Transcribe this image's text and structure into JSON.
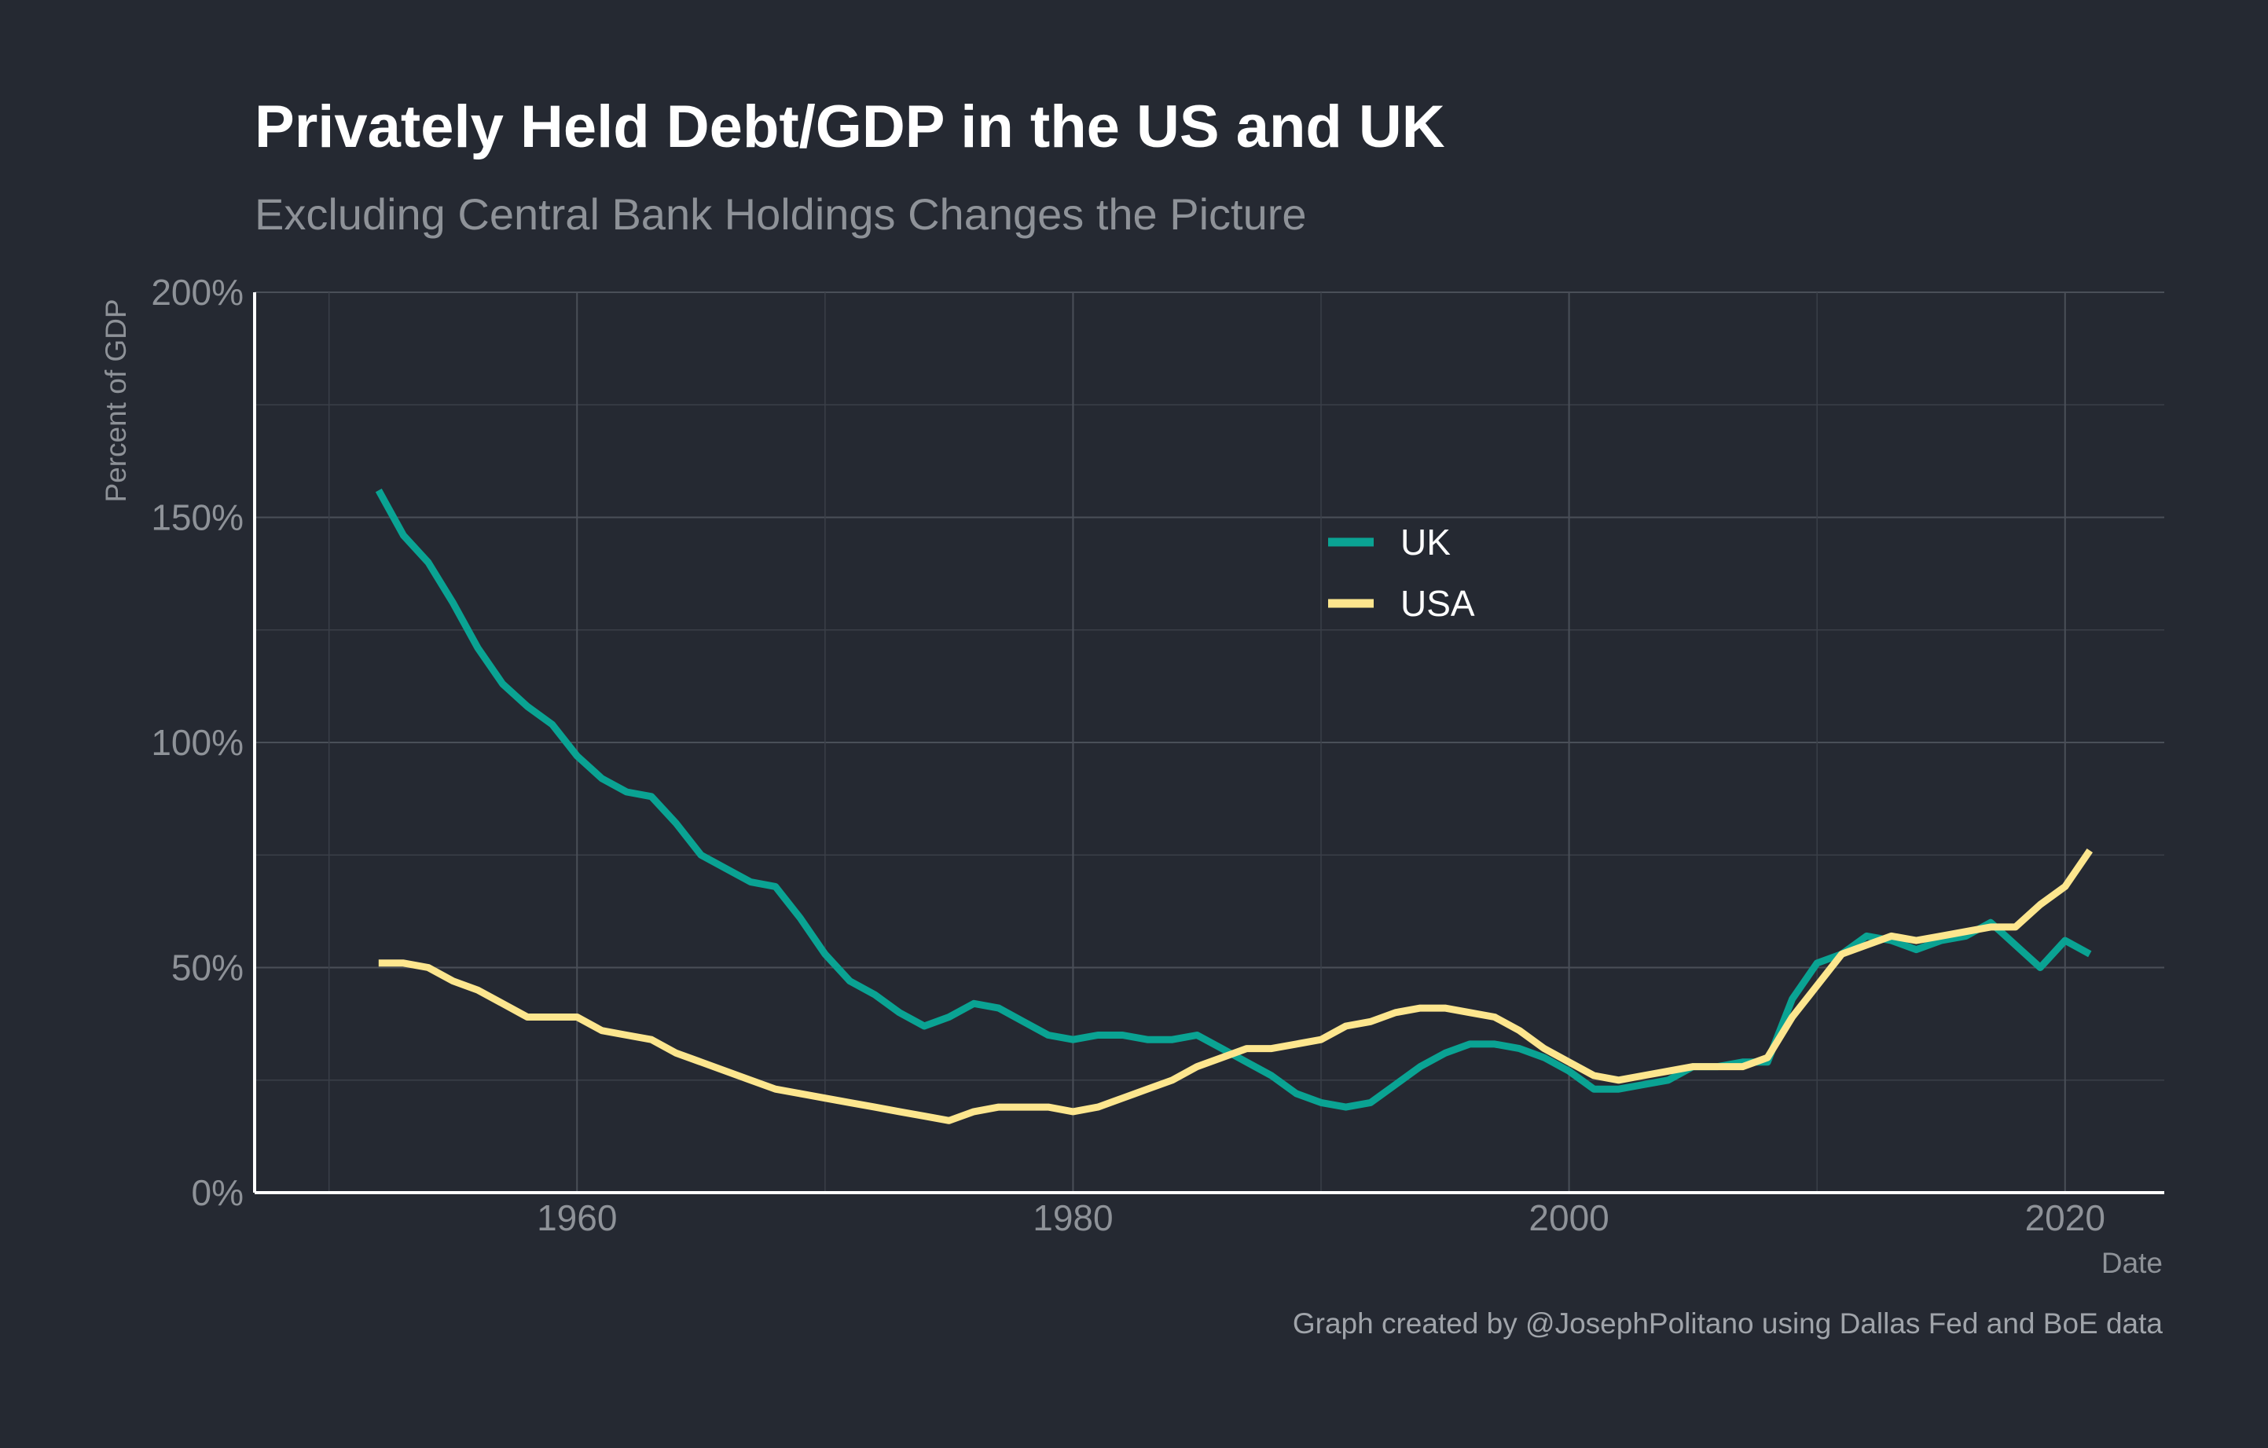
{
  "chart_data": {
    "type": "line",
    "title": "Privately Held Debt/GDP in the US and UK",
    "subtitle": "Excluding Central Bank Holdings Changes the Picture",
    "xlabel": "Date",
    "ylabel": "Percent of GDP",
    "caption": "Graph created by @JosephPolitano using Dallas Fed and BoE data",
    "xlim": [
      1947,
      2024
    ],
    "ylim": [
      0,
      200
    ],
    "x_ticks": [
      1960,
      1980,
      2000,
      2020
    ],
    "y_ticks": [
      0,
      50,
      100,
      150,
      200
    ],
    "y_tick_labels": [
      "0%",
      "50%",
      "100%",
      "150%",
      "200%"
    ],
    "grid": true,
    "legend_position": "center",
    "x": [
      1952,
      1953,
      1954,
      1955,
      1956,
      1957,
      1958,
      1959,
      1960,
      1961,
      1962,
      1963,
      1964,
      1965,
      1966,
      1967,
      1968,
      1969,
      1970,
      1971,
      1972,
      1973,
      1974,
      1975,
      1976,
      1977,
      1978,
      1979,
      1980,
      1981,
      1982,
      1983,
      1984,
      1985,
      1986,
      1987,
      1988,
      1989,
      1990,
      1991,
      1992,
      1993,
      1994,
      1995,
      1996,
      1997,
      1998,
      1999,
      2000,
      2001,
      2002,
      2003,
      2004,
      2005,
      2006,
      2007,
      2008,
      2009,
      2010,
      2011,
      2012,
      2013,
      2014,
      2015,
      2016,
      2017,
      2018,
      2019,
      2020,
      2021
    ],
    "series": [
      {
        "name": "UK",
        "color": "#0aa393",
        "values": [
          156,
          146,
          140,
          131,
          121,
          113,
          108,
          104,
          97,
          92,
          89,
          88,
          82,
          75,
          72,
          69,
          68,
          61,
          53,
          47,
          44,
          40,
          37,
          39,
          42,
          41,
          38,
          35,
          34,
          35,
          35,
          34,
          34,
          35,
          32,
          29,
          26,
          22,
          20,
          19,
          20,
          24,
          28,
          31,
          33,
          33,
          32,
          30,
          27,
          23,
          23,
          24,
          25,
          28,
          28,
          29,
          29,
          43,
          51,
          53,
          57,
          56,
          54,
          56,
          57,
          60,
          55,
          50,
          56,
          53
        ]
      },
      {
        "name": "USA",
        "color": "#fde68e",
        "values": [
          51,
          51,
          50,
          47,
          45,
          42,
          39,
          39,
          39,
          36,
          35,
          34,
          31,
          29,
          27,
          25,
          23,
          22,
          21,
          20,
          19,
          18,
          17,
          16,
          18,
          19,
          19,
          19,
          18,
          19,
          21,
          23,
          25,
          28,
          30,
          32,
          32,
          33,
          34,
          37,
          38,
          40,
          41,
          41,
          40,
          39,
          36,
          32,
          29,
          26,
          25,
          26,
          27,
          28,
          28,
          28,
          30,
          39,
          46,
          53,
          55,
          57,
          56,
          57,
          58,
          59,
          59,
          64,
          68,
          76
        ]
      }
    ]
  }
}
